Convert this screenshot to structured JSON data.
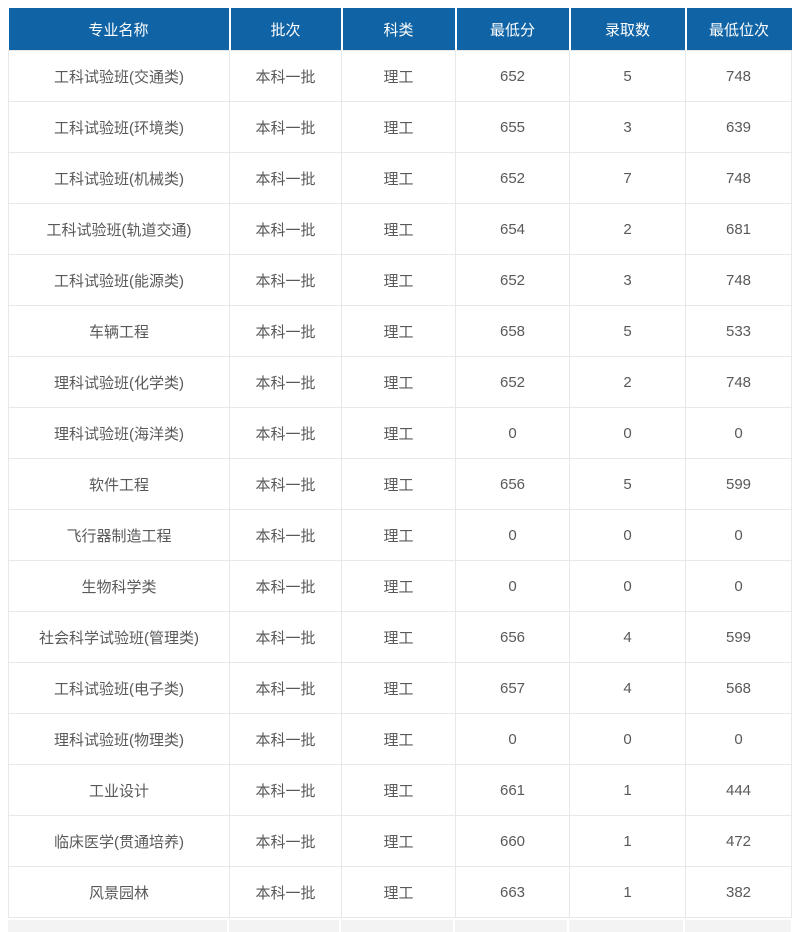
{
  "chart_data": {
    "type": "table",
    "columns": [
      "专业名称",
      "批次",
      "科类",
      "最低分",
      "录取数",
      "最低位次"
    ],
    "rows": [
      [
        "工科试验班(交通类)",
        "本科一批",
        "理工",
        "652",
        "5",
        "748"
      ],
      [
        "工科试验班(环境类)",
        "本科一批",
        "理工",
        "655",
        "3",
        "639"
      ],
      [
        "工科试验班(机械类)",
        "本科一批",
        "理工",
        "652",
        "7",
        "748"
      ],
      [
        "工科试验班(轨道交通)",
        "本科一批",
        "理工",
        "654",
        "2",
        "681"
      ],
      [
        "工科试验班(能源类)",
        "本科一批",
        "理工",
        "652",
        "3",
        "748"
      ],
      [
        "车辆工程",
        "本科一批",
        "理工",
        "658",
        "5",
        "533"
      ],
      [
        "理科试验班(化学类)",
        "本科一批",
        "理工",
        "652",
        "2",
        "748"
      ],
      [
        "理科试验班(海洋类)",
        "本科一批",
        "理工",
        "0",
        "0",
        "0"
      ],
      [
        "软件工程",
        "本科一批",
        "理工",
        "656",
        "5",
        "599"
      ],
      [
        "飞行器制造工程",
        "本科一批",
        "理工",
        "0",
        "0",
        "0"
      ],
      [
        "生物科学类",
        "本科一批",
        "理工",
        "0",
        "0",
        "0"
      ],
      [
        "社会科学试验班(管理类)",
        "本科一批",
        "理工",
        "656",
        "4",
        "599"
      ],
      [
        "工科试验班(电子类)",
        "本科一批",
        "理工",
        "657",
        "4",
        "568"
      ],
      [
        "理科试验班(物理类)",
        "本科一批",
        "理工",
        "0",
        "0",
        "0"
      ],
      [
        "工业设计",
        "本科一批",
        "理工",
        "661",
        "1",
        "444"
      ],
      [
        "临床医学(贯通培养)",
        "本科一批",
        "理工",
        "660",
        "1",
        "472"
      ],
      [
        "风景园林",
        "本科一批",
        "理工",
        "663",
        "1",
        "382"
      ]
    ],
    "column_keys": [
      "major-name",
      "batch",
      "subject-category",
      "min-score",
      "admitted-count",
      "min-rank"
    ]
  },
  "colors": {
    "header_bg": "#1064a6",
    "header_text": "#ffffff",
    "body_text": "#595959",
    "grid_line": "#e8e8e8",
    "partial_next_row_bg": "#f3f3f3"
  }
}
